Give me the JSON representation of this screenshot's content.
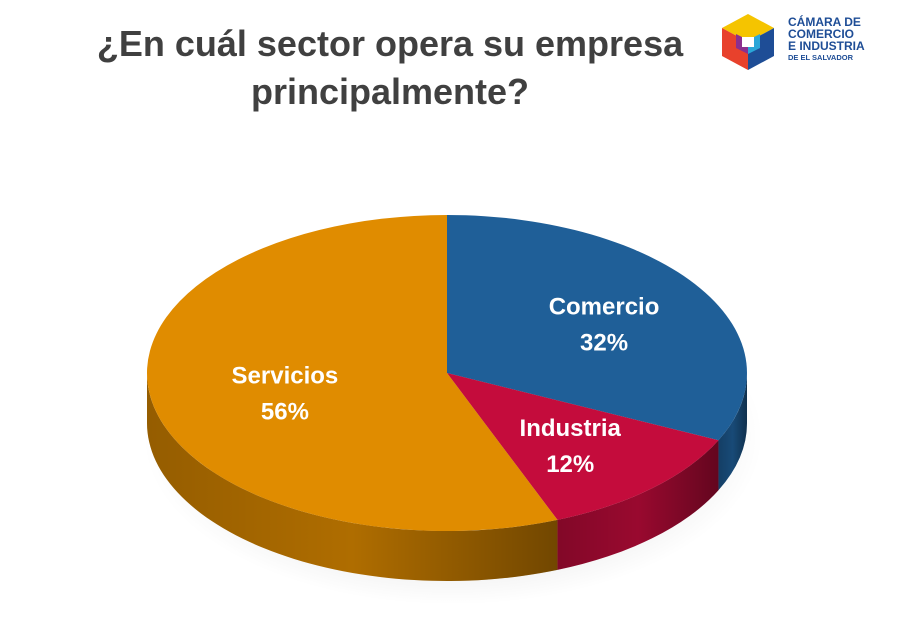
{
  "title_line1": "¿En cuál sector opera su empresa",
  "title_line2": "principalmente?",
  "logo": {
    "line1": "CÁMARA DE",
    "line2": "COMERCIO",
    "line3": "E INDUSTRIA",
    "line4": "DE EL SALVADOR",
    "colors": [
      "#f5c400",
      "#e8412c",
      "#1e4d96",
      "#8b2f8f",
      "#2aa6d8"
    ]
  },
  "chart_data": {
    "type": "pie",
    "categories": [
      "Comercio",
      "Industria",
      "Servicios"
    ],
    "values": [
      32,
      12,
      56
    ],
    "value_labels": [
      "32%",
      "12%",
      "56%"
    ],
    "colors": [
      "#1f5f98",
      "#c40c3c",
      "#e08c00"
    ],
    "style": "3d-pie"
  }
}
